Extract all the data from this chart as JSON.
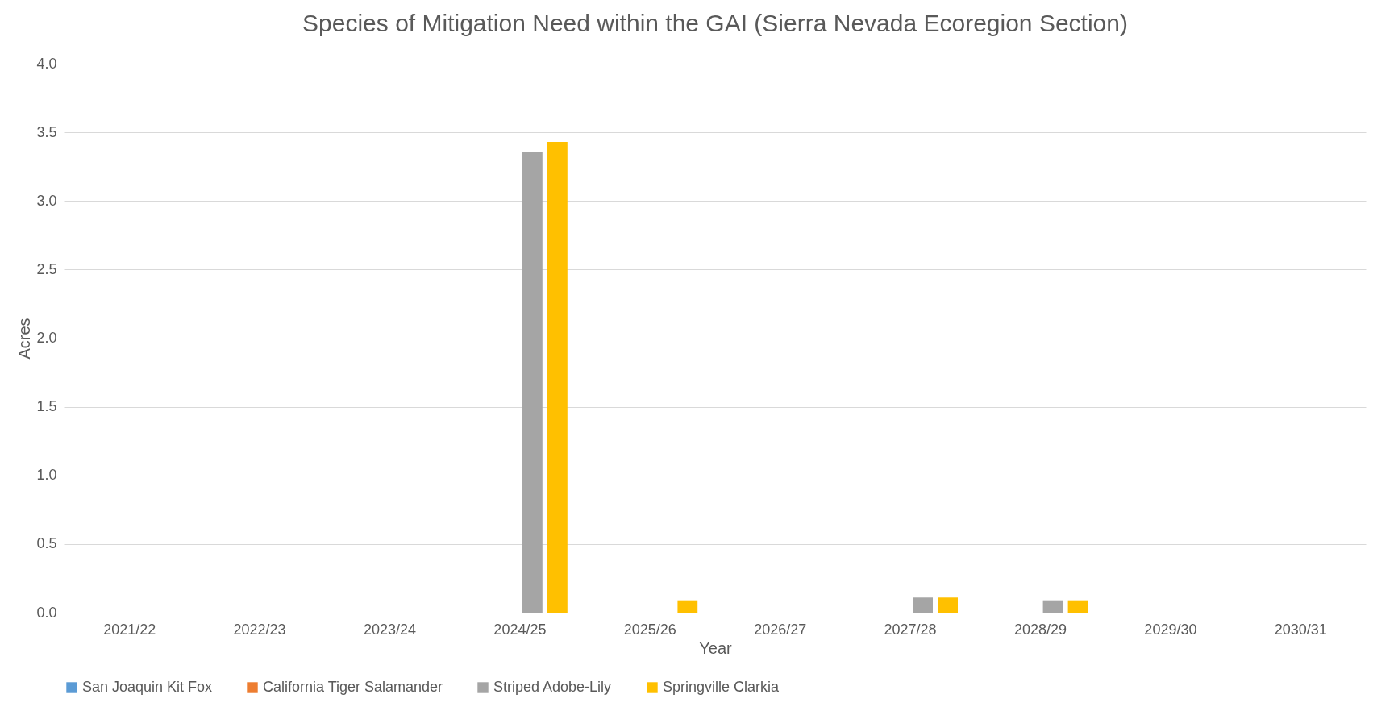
{
  "chart_data": {
    "type": "bar",
    "title": "Species of Mitigation Need within the GAI (Sierra Nevada Ecoregion Section)",
    "xlabel": "Year",
    "ylabel": "Acres",
    "categories": [
      "2021/22",
      "2022/23",
      "2023/24",
      "2024/25",
      "2025/26",
      "2026/27",
      "2027/28",
      "2028/29",
      "2029/30",
      "2030/31"
    ],
    "series": [
      {
        "name": "San Joaquin Kit Fox",
        "color": "#5b9bd5",
        "values": [
          0,
          0,
          0,
          0,
          0,
          0,
          0,
          0,
          0,
          0
        ]
      },
      {
        "name": "California Tiger Salamander",
        "color": "#ed7d31",
        "values": [
          0,
          0,
          0,
          0,
          0,
          0,
          0,
          0,
          0,
          0
        ]
      },
      {
        "name": "Striped Adobe-Lily",
        "color": "#a5a5a5",
        "values": [
          0,
          0,
          0,
          3.36,
          0,
          0,
          0.11,
          0.09,
          0,
          0
        ]
      },
      {
        "name": "Springville Clarkia",
        "color": "#ffc000",
        "values": [
          0,
          0,
          0,
          3.43,
          0.09,
          0,
          0.11,
          0.09,
          0,
          0
        ]
      }
    ],
    "ylim": [
      0,
      4
    ],
    "yticks": [
      {
        "value": 0,
        "label": "0.0"
      },
      {
        "value": 0.5,
        "label": "0.5"
      },
      {
        "value": 1,
        "label": "1.0"
      },
      {
        "value": 1.5,
        "label": "1.5"
      },
      {
        "value": 2,
        "label": "2.0"
      },
      {
        "value": 2.5,
        "label": "2.5"
      },
      {
        "value": 3,
        "label": "3.0"
      },
      {
        "value": 3.5,
        "label": "3.5"
      },
      {
        "value": 4,
        "label": "4.0"
      }
    ],
    "grid": "y",
    "legend": "bottom"
  }
}
